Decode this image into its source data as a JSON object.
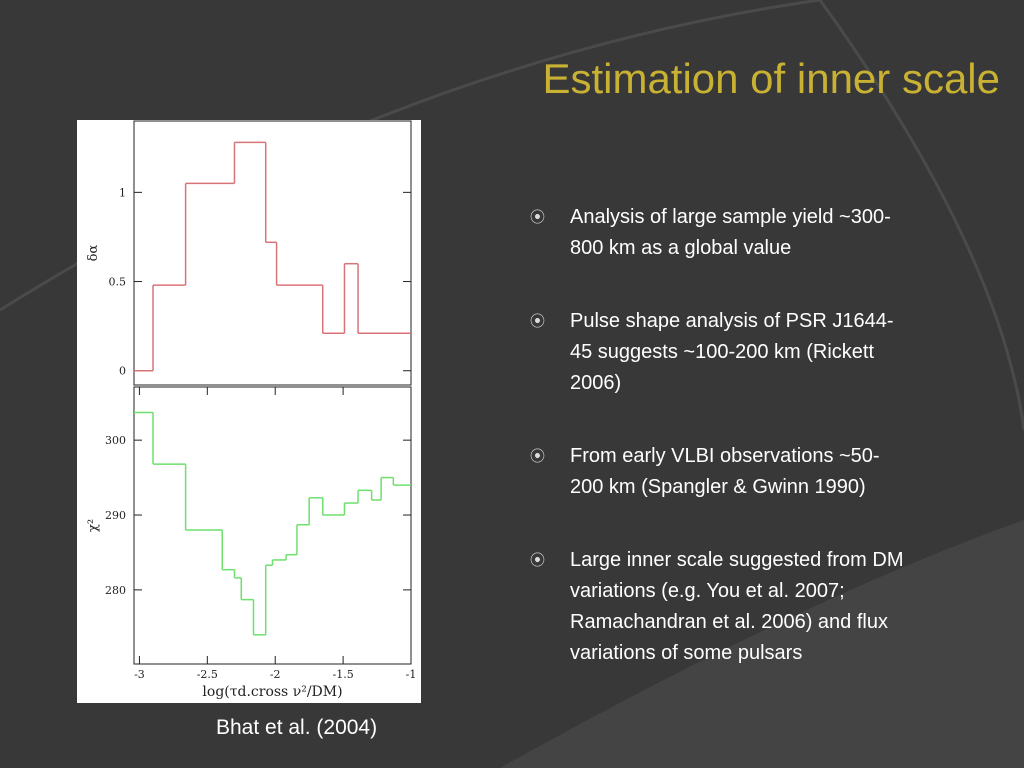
{
  "slide": {
    "title": "Estimation of inner scale",
    "bullets": [
      "Analysis of large sample yield ~300-800 km as a global value",
      "Pulse shape analysis of PSR J1644-45 suggests ~100-200 km (Rickett 2006)",
      "From early VLBI observations ~50-200 km (Spangler & Gwinn 1990)",
      "Large inner scale suggested from DM variations (e.g. You et al. 2007; Ramachandran et al. 2006) and flux variations of some pulsars"
    ],
    "caption": "Bhat et al. (2004)"
  },
  "chart_data": [
    {
      "type": "histogram",
      "ylabel": "δα",
      "color": "#d9737a",
      "bins": [
        -3.04,
        -2.9,
        -2.66,
        -2.3,
        -2.07,
        -1.99,
        -1.65,
        -1.49,
        -1.39,
        -1.0
      ],
      "values": [
        0,
        0.48,
        1.05,
        1.28,
        0.72,
        0.48,
        0.21,
        0.6,
        0.21
      ],
      "xlim": [
        -3.04,
        -1.0
      ],
      "ylim": [
        -0.08,
        1.4
      ],
      "yticks": [
        0,
        0.5,
        1
      ]
    },
    {
      "type": "histogram",
      "ylabel": "χ²",
      "xlabel": "log(τd.cross ν²/DM)",
      "color": "#6de06d",
      "bins": [
        -3.04,
        -2.9,
        -2.66,
        -2.39,
        -2.3,
        -2.25,
        -2.16,
        -2.07,
        -2.02,
        -1.92,
        -1.84,
        -1.75,
        -1.65,
        -1.49,
        -1.39,
        -1.29,
        -1.22,
        -1.13,
        -1.0
      ],
      "values": [
        303.7,
        296.8,
        288.0,
        282.7,
        281.6,
        278.7,
        274.0,
        283.3,
        284.0,
        284.7,
        288.7,
        292.3,
        290.0,
        291.6,
        293.3,
        292.0,
        295.0,
        294.0
      ],
      "xlim": [
        -3.04,
        -1.0
      ],
      "ylim": [
        270.1,
        307.1
      ],
      "xticks": [
        -3,
        -2.5,
        -2,
        -1.5,
        -1
      ],
      "yticks": [
        280,
        290,
        300
      ]
    }
  ]
}
